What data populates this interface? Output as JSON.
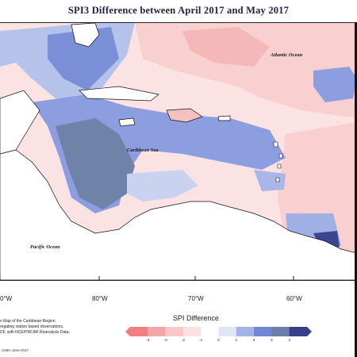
{
  "map": {
    "title": "SPI3 Difference between April 2017 and May 2017",
    "labels": {
      "atlantic": "Atlantic Ocean",
      "caribbean": "Caribbean Sea",
      "pacific": "Pacific Ocean"
    },
    "longitude_ticks": [
      "0°W",
      "80°W",
      "70°W",
      "60°W"
    ],
    "footnote_lines": [
      "n Map of the Caribbean Region.",
      "regating station based observations,",
      "DF, with NCEP/NCAR Reanalysis Data."
    ],
    "credit": "CIMH June-2017"
  },
  "legend": {
    "title": "SPI Difference",
    "ticks": [
      "-4",
      "-3",
      "-2",
      "-1",
      "0",
      "1",
      "2",
      "3",
      "4"
    ],
    "colors": [
      "#f08080",
      "#f4a6a6",
      "#f8c8c8",
      "#fbe1e1",
      "#ffffff",
      "#dfe6f4",
      "#a4b3e4",
      "#7285d6",
      "#6b7fa8",
      "#3a3f8c"
    ]
  }
}
